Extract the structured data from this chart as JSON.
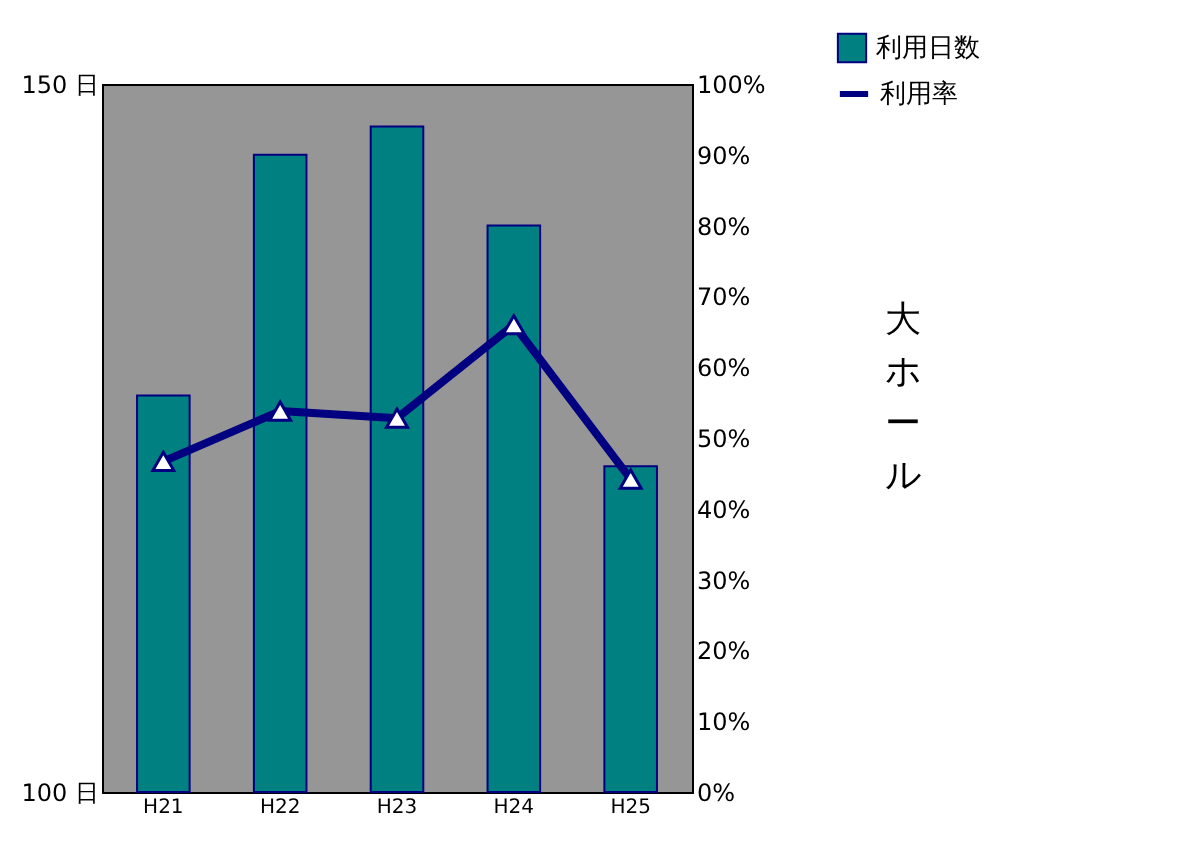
{
  "chart_data": {
    "type": "bar",
    "categories": [
      "H21",
      "H22",
      "H23",
      "H24",
      "H25"
    ],
    "series": [
      {
        "name": "利用日数",
        "color": "#008080",
        "values": [
          128,
          145,
          147,
          140,
          123
        ]
      },
      {
        "name": "利用率",
        "type": "line",
        "axis": "y2",
        "color": "#000080",
        "marker": "triangle",
        "values": [
          46.7,
          53.8,
          52.8,
          66.0,
          44.2
        ]
      }
    ],
    "ylim": [
      100,
      150
    ],
    "yticks": [
      {
        "value": 100,
        "label": "100 日"
      },
      {
        "value": 150,
        "label": "150 日"
      }
    ],
    "y2lim": [
      0,
      100
    ],
    "y2ticks": [
      {
        "value": 0,
        "label": "0%"
      },
      {
        "value": 10,
        "label": "10%"
      },
      {
        "value": 20,
        "label": "20%"
      },
      {
        "value": 30,
        "label": "30%"
      },
      {
        "value": 40,
        "label": "40%"
      },
      {
        "value": 50,
        "label": "50%"
      },
      {
        "value": 60,
        "label": "60%"
      },
      {
        "value": 70,
        "label": "70%"
      },
      {
        "value": 80,
        "label": "80%"
      },
      {
        "value": 90,
        "label": "90%"
      },
      {
        "value": 100,
        "label": "100%"
      }
    ],
    "y2label": "大ホール",
    "grid": false,
    "legend": "top right"
  }
}
